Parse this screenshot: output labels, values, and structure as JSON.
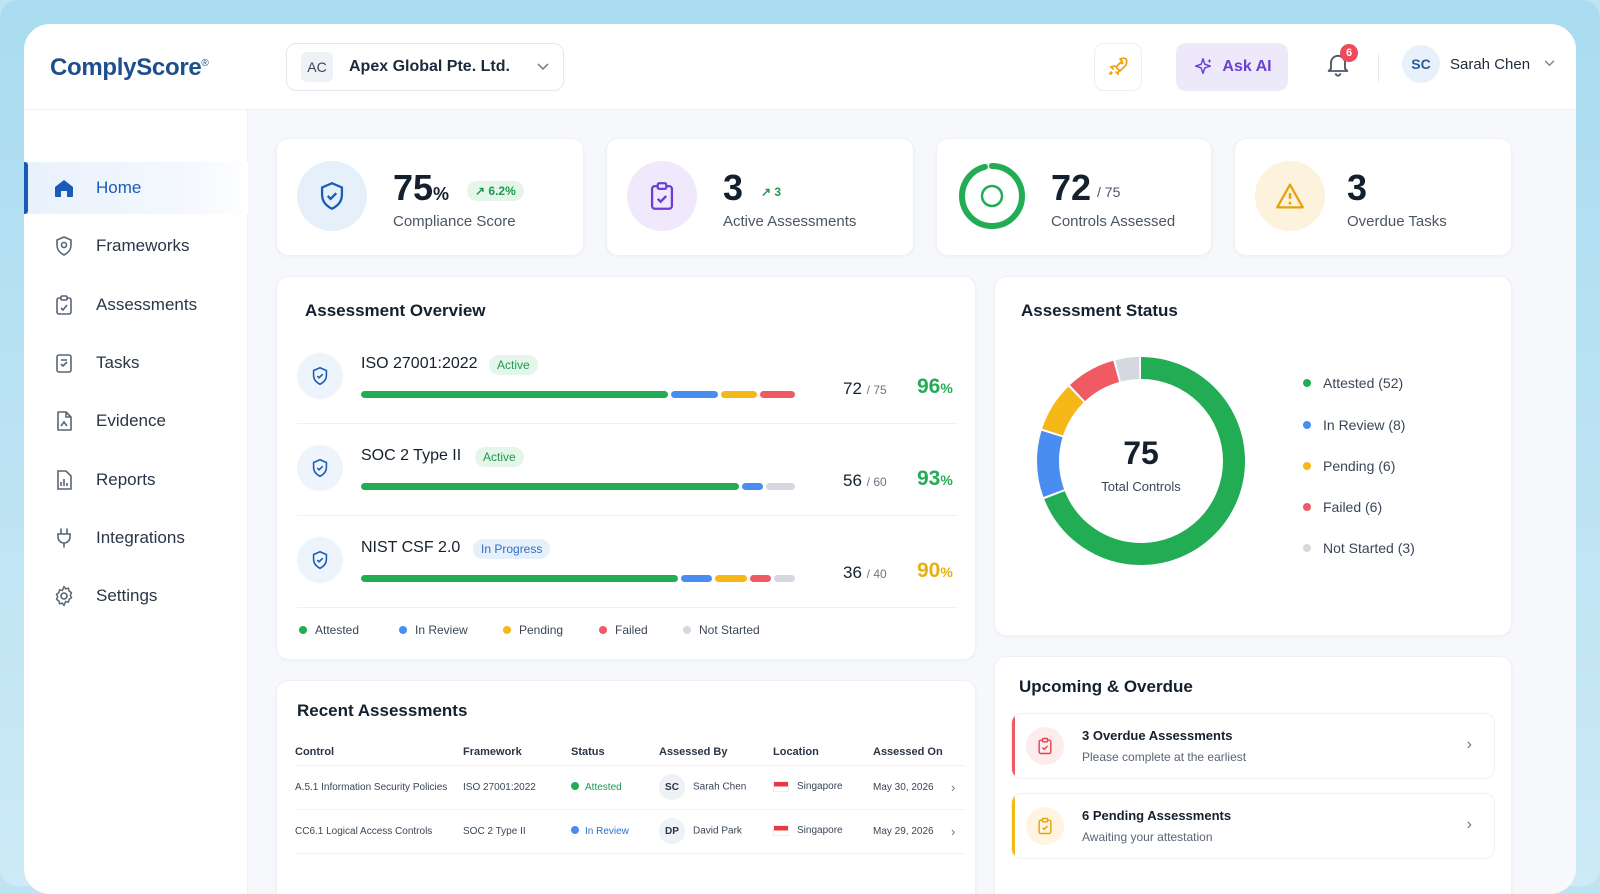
{
  "header": {
    "logo": "ComplyScore",
    "logo_mark": "®",
    "org_abbr": "AC",
    "org_name": "Apex Global Pte. Ltd.",
    "ask_ai_label": "Ask AI",
    "notification_count": "6",
    "user_initials": "SC",
    "user_name": "Sarah Chen"
  },
  "sidebar": {
    "items": [
      {
        "label": "Home",
        "icon": "home-icon",
        "active": true
      },
      {
        "label": "Frameworks",
        "icon": "shield-icon"
      },
      {
        "label": "Assessments",
        "icon": "clipboard-icon"
      },
      {
        "label": "Tasks",
        "icon": "checklist-icon"
      },
      {
        "label": "Evidence",
        "icon": "document-icon"
      },
      {
        "label": "Reports",
        "icon": "report-icon"
      },
      {
        "label": "Integrations",
        "icon": "plug-icon"
      },
      {
        "label": "Settings",
        "icon": "gear-icon"
      }
    ]
  },
  "kpis": {
    "compliance": {
      "value": "75",
      "unit": "%",
      "delta": "6.2%",
      "label": "Compliance Score"
    },
    "assessments": {
      "value": "3",
      "delta": "3",
      "label": "Active Assessments"
    },
    "controls": {
      "value": "72",
      "total": "/ 75",
      "label": "Controls Assessed",
      "progress": 0.96
    },
    "overdue": {
      "value": "3",
      "label": "Overdue Tasks"
    }
  },
  "overview": {
    "title": "Assessment Overview",
    "frameworks": [
      {
        "name": "ISO 27001:2022",
        "status": "Active",
        "count": "72",
        "total": "/ 75",
        "pct": "96",
        "pct_unit": "%",
        "segments": [
          52,
          8,
          6,
          6,
          0
        ]
      },
      {
        "name": "SOC 2 Type II",
        "status": "Active",
        "count": "56",
        "total": "/ 60",
        "pct": "93",
        "pct_unit": "%",
        "segments": [
          53,
          3,
          0,
          0,
          4
        ]
      },
      {
        "name": "NIST CSF 2.0",
        "status": "In Progress",
        "count": "36",
        "total": "/ 40",
        "pct": "90",
        "pct_unit": "%",
        "segments": [
          30,
          3,
          3,
          2,
          2
        ]
      }
    ],
    "legend": [
      "Attested",
      "In Review",
      "Pending",
      "Failed",
      "Not Started"
    ]
  },
  "status": {
    "title": "Assessment Status",
    "total": "75",
    "total_label": "Total Controls",
    "legend": [
      "Attested (52)",
      "In Review (8)",
      "Pending (6)",
      "Failed (6)",
      "Not Started (3)"
    ]
  },
  "chart_data": {
    "type": "pie",
    "categories": [
      "Attested",
      "In Review",
      "Pending",
      "Failed",
      "Not Started"
    ],
    "values": [
      52,
      8,
      6,
      6,
      3
    ],
    "colors": [
      "#22ad55",
      "#4a8df0",
      "#f5b817",
      "#ef5a63",
      "#d5d9df"
    ]
  },
  "recent": {
    "title": "Recent Assessments",
    "columns": [
      "Control",
      "Framework",
      "Status",
      "Assessed By",
      "Location",
      "Assessed On"
    ],
    "rows": [
      {
        "control": "A.5.1 Information Security Policies",
        "framework": "ISO 27001:2022",
        "status": "Attested",
        "initials": "SC",
        "by": "Sarah Chen",
        "location": "Singapore",
        "date": "May 30, 2026"
      },
      {
        "control": "CC6.1 Logical Access Controls",
        "framework": "SOC 2 Type II",
        "status": "In Review",
        "initials": "DP",
        "by": "David Park",
        "location": "Singapore",
        "date": "May 29, 2026"
      }
    ]
  },
  "upcoming": {
    "title": "Upcoming & Overdue",
    "items": [
      {
        "title": "3 Overdue Assessments",
        "subtitle": "Please complete at the earliest"
      },
      {
        "title": "6 Pending Assessments",
        "subtitle": "Awaiting your attestation"
      }
    ]
  },
  "colors": {
    "attested": "#22ad55",
    "review": "#4a8df0",
    "pending": "#f5b817",
    "failed": "#ef5a63",
    "not_started": "#d5d9df",
    "brand": "#1a5bb8"
  }
}
